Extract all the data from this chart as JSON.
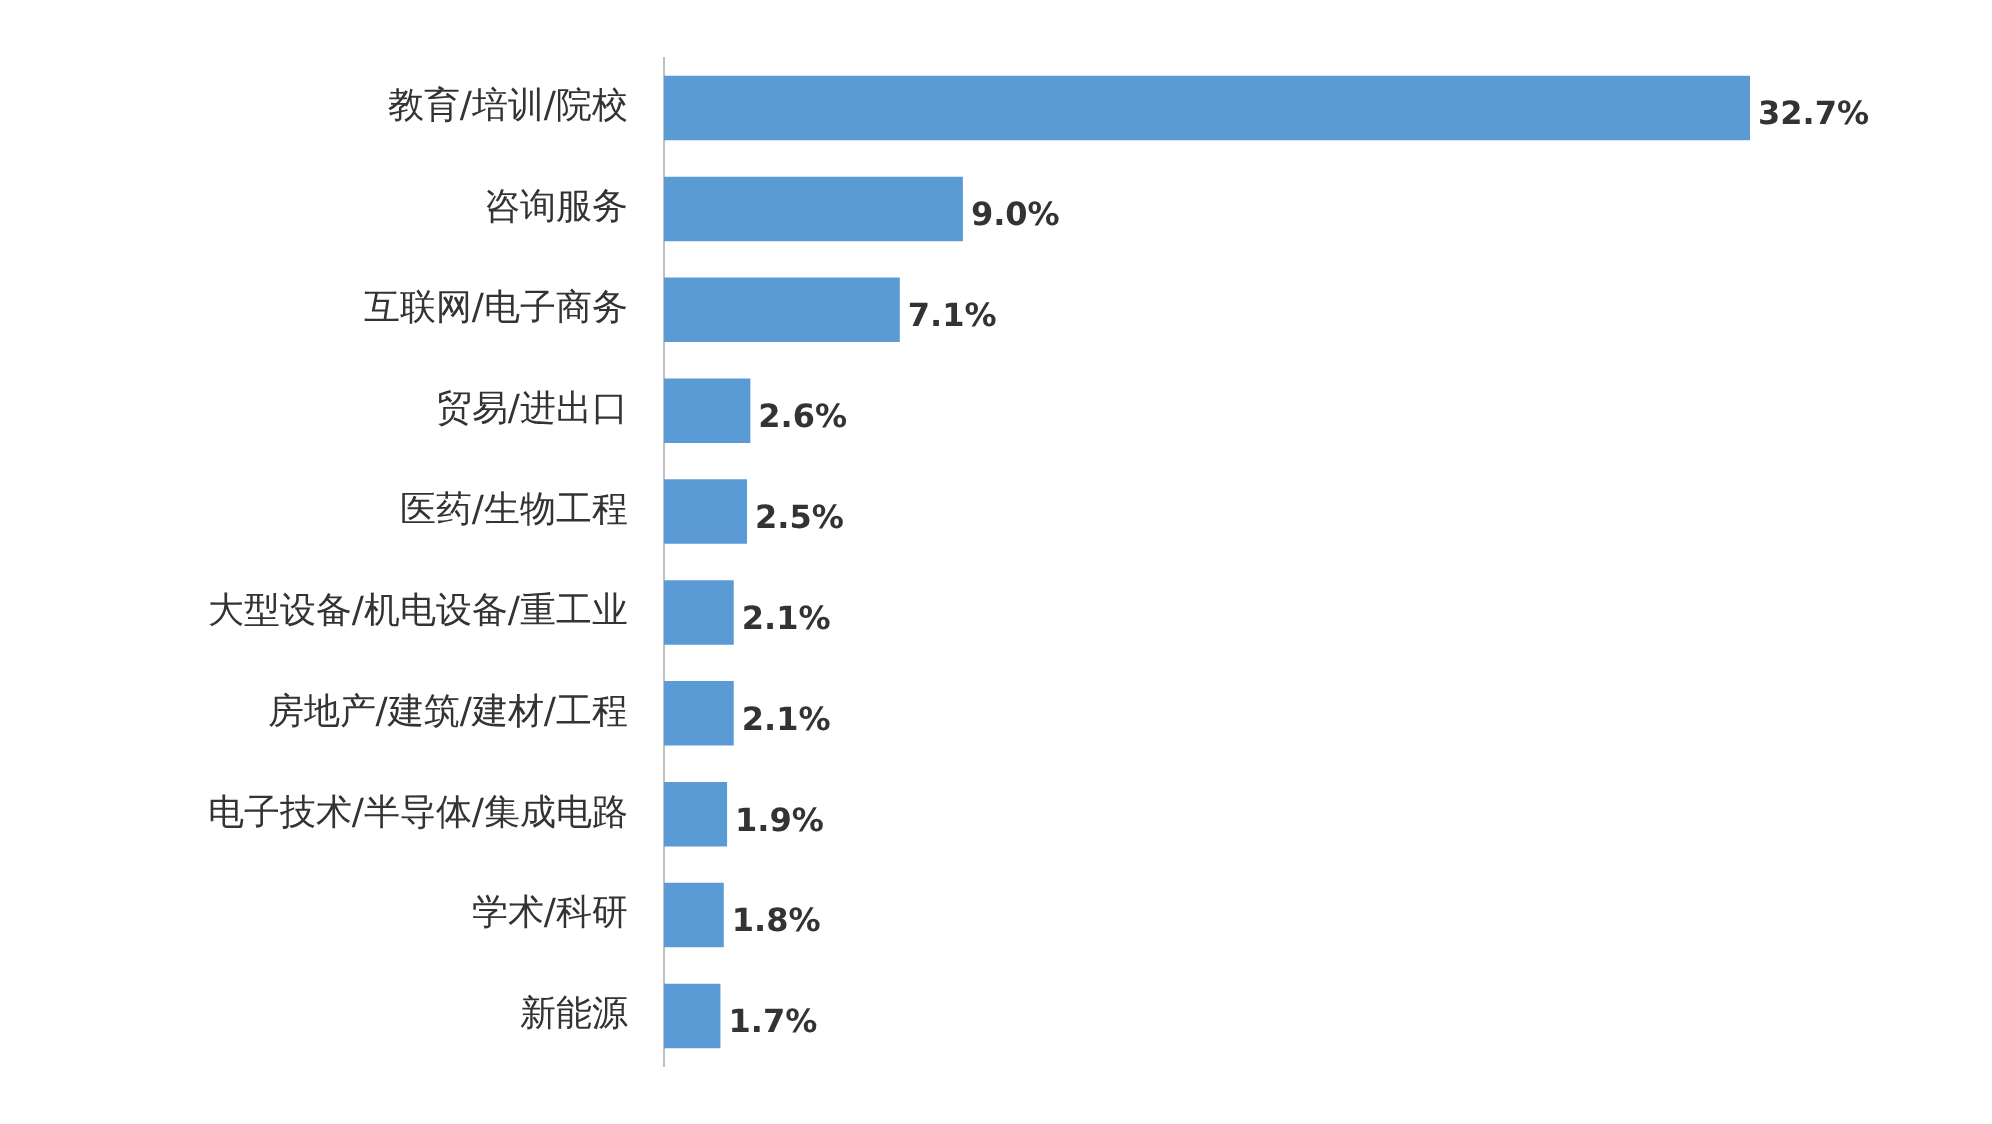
{
  "chart_data": {
    "type": "bar",
    "orientation": "horizontal",
    "categories": [
      "教育/培训/院校",
      "咨询服务",
      "互联网/电子商务",
      "贸易/进出口",
      "医药/生物工程",
      "大型设备/机电设备/重工业",
      "房地产/建筑/建材/工程",
      "电子技术/半导体/集成电路",
      "学术/科研",
      "新能源"
    ],
    "values": [
      32.7,
      9.0,
      7.1,
      2.6,
      2.5,
      2.1,
      2.1,
      1.9,
      1.8,
      1.7
    ],
    "color": "#5b9bd5",
    "value_labels": [
      "32.7%",
      "9.0%",
      "7.1%",
      "2.6%",
      "2.5%",
      "2.1%",
      "2.1%",
      "1.9%",
      "1.8%",
      "1.7%"
    ]
  }
}
